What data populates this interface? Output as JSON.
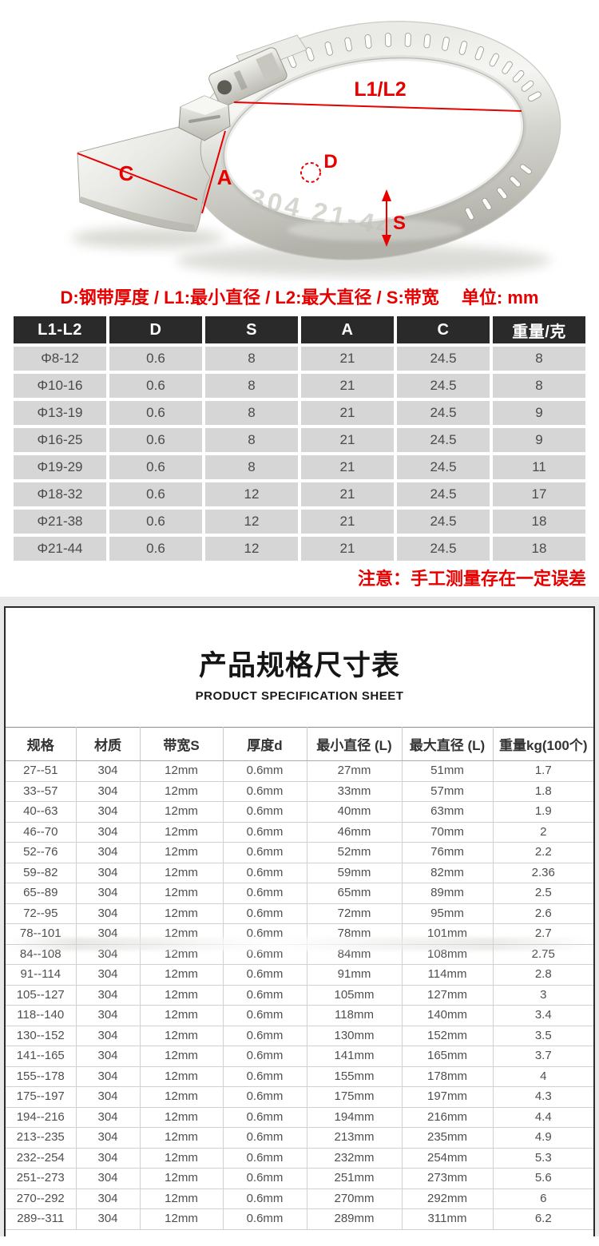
{
  "photo": {
    "engraving": "304 21-44",
    "annotations": {
      "diameter": "L1/L2",
      "wing": "C",
      "arm": "A",
      "thickness": "D",
      "band_width": "S"
    },
    "accent_color": "#e60000"
  },
  "legend": "D:钢带厚度 / L1:最小直径 / L2:最大直径 / S:带宽　 单位: mm",
  "size_table": {
    "headers": [
      "L1-L2",
      "D",
      "S",
      "A",
      "C",
      "重量/克"
    ],
    "rows": [
      [
        "Φ8-12",
        "0.6",
        "8",
        "21",
        "24.5",
        "8"
      ],
      [
        "Φ10-16",
        "0.6",
        "8",
        "21",
        "24.5",
        "8"
      ],
      [
        "Φ13-19",
        "0.6",
        "8",
        "21",
        "24.5",
        "9"
      ],
      [
        "Φ16-25",
        "0.6",
        "8",
        "21",
        "24.5",
        "9"
      ],
      [
        "Φ19-29",
        "0.6",
        "8",
        "21",
        "24.5",
        "11"
      ],
      [
        "Φ18-32",
        "0.6",
        "12",
        "21",
        "24.5",
        "17"
      ],
      [
        "Φ21-38",
        "0.6",
        "12",
        "21",
        "24.5",
        "18"
      ],
      [
        "Φ21-44",
        "0.6",
        "12",
        "21",
        "24.5",
        "18"
      ]
    ]
  },
  "note": "注意：手工测量存在一定误差",
  "sheet": {
    "title": "产品规格尺寸表",
    "subtitle": "PRODUCT SPECIFICATION SHEET",
    "headers": [
      "规格",
      "材质",
      "带宽S",
      "厚度d",
      "最小直径 (L)",
      "最大直径 (L)",
      "重量kg(100个)"
    ],
    "rows": [
      [
        "27--51",
        "304",
        "12mm",
        "0.6mm",
        "27mm",
        "51mm",
        "1.7"
      ],
      [
        "33--57",
        "304",
        "12mm",
        "0.6mm",
        "33mm",
        "57mm",
        "1.8"
      ],
      [
        "40--63",
        "304",
        "12mm",
        "0.6mm",
        "40mm",
        "63mm",
        "1.9"
      ],
      [
        "46--70",
        "304",
        "12mm",
        "0.6mm",
        "46mm",
        "70mm",
        "2"
      ],
      [
        "52--76",
        "304",
        "12mm",
        "0.6mm",
        "52mm",
        "76mm",
        "2.2"
      ],
      [
        "59--82",
        "304",
        "12mm",
        "0.6mm",
        "59mm",
        "82mm",
        "2.36"
      ],
      [
        "65--89",
        "304",
        "12mm",
        "0.6mm",
        "65mm",
        "89mm",
        "2.5"
      ],
      [
        "72--95",
        "304",
        "12mm",
        "0.6mm",
        "72mm",
        "95mm",
        "2.6"
      ],
      [
        "78--101",
        "304",
        "12mm",
        "0.6mm",
        "78mm",
        "101mm",
        "2.7"
      ],
      [
        "84--108",
        "304",
        "12mm",
        "0.6mm",
        "84mm",
        "108mm",
        "2.75"
      ],
      [
        "91--114",
        "304",
        "12mm",
        "0.6mm",
        "91mm",
        "114mm",
        "2.8"
      ],
      [
        "105--127",
        "304",
        "12mm",
        "0.6mm",
        "105mm",
        "127mm",
        "3"
      ],
      [
        "118--140",
        "304",
        "12mm",
        "0.6mm",
        "118mm",
        "140mm",
        "3.4"
      ],
      [
        "130--152",
        "304",
        "12mm",
        "0.6mm",
        "130mm",
        "152mm",
        "3.5"
      ],
      [
        "141--165",
        "304",
        "12mm",
        "0.6mm",
        "141mm",
        "165mm",
        "3.7"
      ],
      [
        "155--178",
        "304",
        "12mm",
        "0.6mm",
        "155mm",
        "178mm",
        "4"
      ],
      [
        "175--197",
        "304",
        "12mm",
        "0.6mm",
        "175mm",
        "197mm",
        "4.3"
      ],
      [
        "194--216",
        "304",
        "12mm",
        "0.6mm",
        "194mm",
        "216mm",
        "4.4"
      ],
      [
        "213--235",
        "304",
        "12mm",
        "0.6mm",
        "213mm",
        "235mm",
        "4.9"
      ],
      [
        "232--254",
        "304",
        "12mm",
        "0.6mm",
        "232mm",
        "254mm",
        "5.3"
      ],
      [
        "251--273",
        "304",
        "12mm",
        "0.6mm",
        "251mm",
        "273mm",
        "5.6"
      ],
      [
        "270--292",
        "304",
        "12mm",
        "0.6mm",
        "270mm",
        "292mm",
        "6"
      ],
      [
        "289--311",
        "304",
        "12mm",
        "0.6mm",
        "289mm",
        "311mm",
        "6.2"
      ]
    ]
  }
}
